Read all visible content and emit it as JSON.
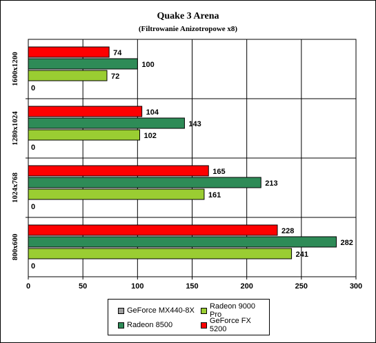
{
  "chart_data": {
    "type": "bar",
    "orientation": "horizontal",
    "title": "Quake 3 Arena",
    "subtitle": "(Filtrowanie Anizotropowe x8)",
    "categories": [
      "1600x1200",
      "1280x1024",
      "1024x768",
      "800x600"
    ],
    "series": [
      {
        "name": "GeForce FX 5200",
        "color": "#ff0000",
        "values": [
          74,
          104,
          165,
          228
        ]
      },
      {
        "name": "Radeon 8500",
        "color": "#2e8b57",
        "values": [
          100,
          143,
          213,
          282
        ]
      },
      {
        "name": "Radeon 9000 Pro",
        "color": "#9acd32",
        "values": [
          72,
          102,
          161,
          241
        ]
      },
      {
        "name": "GeForce MX440-8X",
        "color": "#9e9e9e",
        "values": [
          0,
          0,
          0,
          0
        ]
      }
    ],
    "xlim": [
      0,
      300
    ],
    "x_ticks": [
      "0",
      "50",
      "100",
      "150",
      "200",
      "250",
      "300"
    ],
    "grid": true,
    "legend_position": "bottom"
  },
  "legend": [
    {
      "label": "GeForce MX440-8X",
      "color": "#9e9e9e"
    },
    {
      "label": "Radeon 9000 Pro",
      "color": "#9acd32"
    },
    {
      "label": "Radeon 8500",
      "color": "#2e8b57"
    },
    {
      "label": "GeForce FX 5200",
      "color": "#ff0000"
    }
  ]
}
